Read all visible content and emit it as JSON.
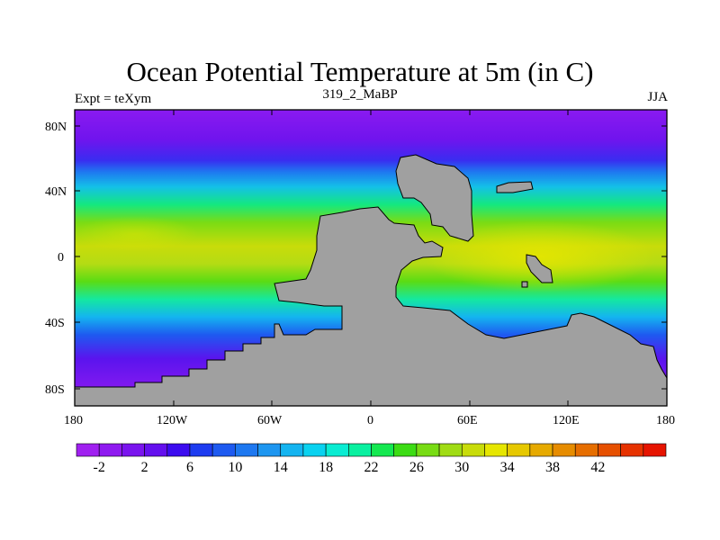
{
  "title": "Ocean Potential Temperature at 5m (in C)",
  "subtitle_left": "Expt = teXym",
  "subtitle_center": "319_2_MaBP",
  "subtitle_right": "JJA",
  "lat_ticks": [
    "80N",
    "40N",
    "0",
    "40S",
    "80S"
  ],
  "lon_ticks": [
    "180",
    "120W",
    "60W",
    "0",
    "60E",
    "120E",
    "180"
  ],
  "colorbar": {
    "labels": [
      "-2",
      "2",
      "6",
      "10",
      "14",
      "18",
      "22",
      "26",
      "30",
      "34",
      "38",
      "42"
    ],
    "colors": [
      "#a020f0",
      "#8f1af0",
      "#7a14ee",
      "#6410ee",
      "#3c0cef",
      "#1e3cf0",
      "#1e5af0",
      "#1e78f0",
      "#1e96f0",
      "#14b4f0",
      "#0ad2f0",
      "#0aecd2",
      "#0af0a0",
      "#14e850",
      "#3cdc14",
      "#78dc14",
      "#a0dc14",
      "#c8dc0a",
      "#e6e600",
      "#e6c800",
      "#e6aa00",
      "#e68c00",
      "#e66e00",
      "#e65000",
      "#e63200",
      "#e61400"
    ]
  },
  "land_color": "#a0a0a0"
}
